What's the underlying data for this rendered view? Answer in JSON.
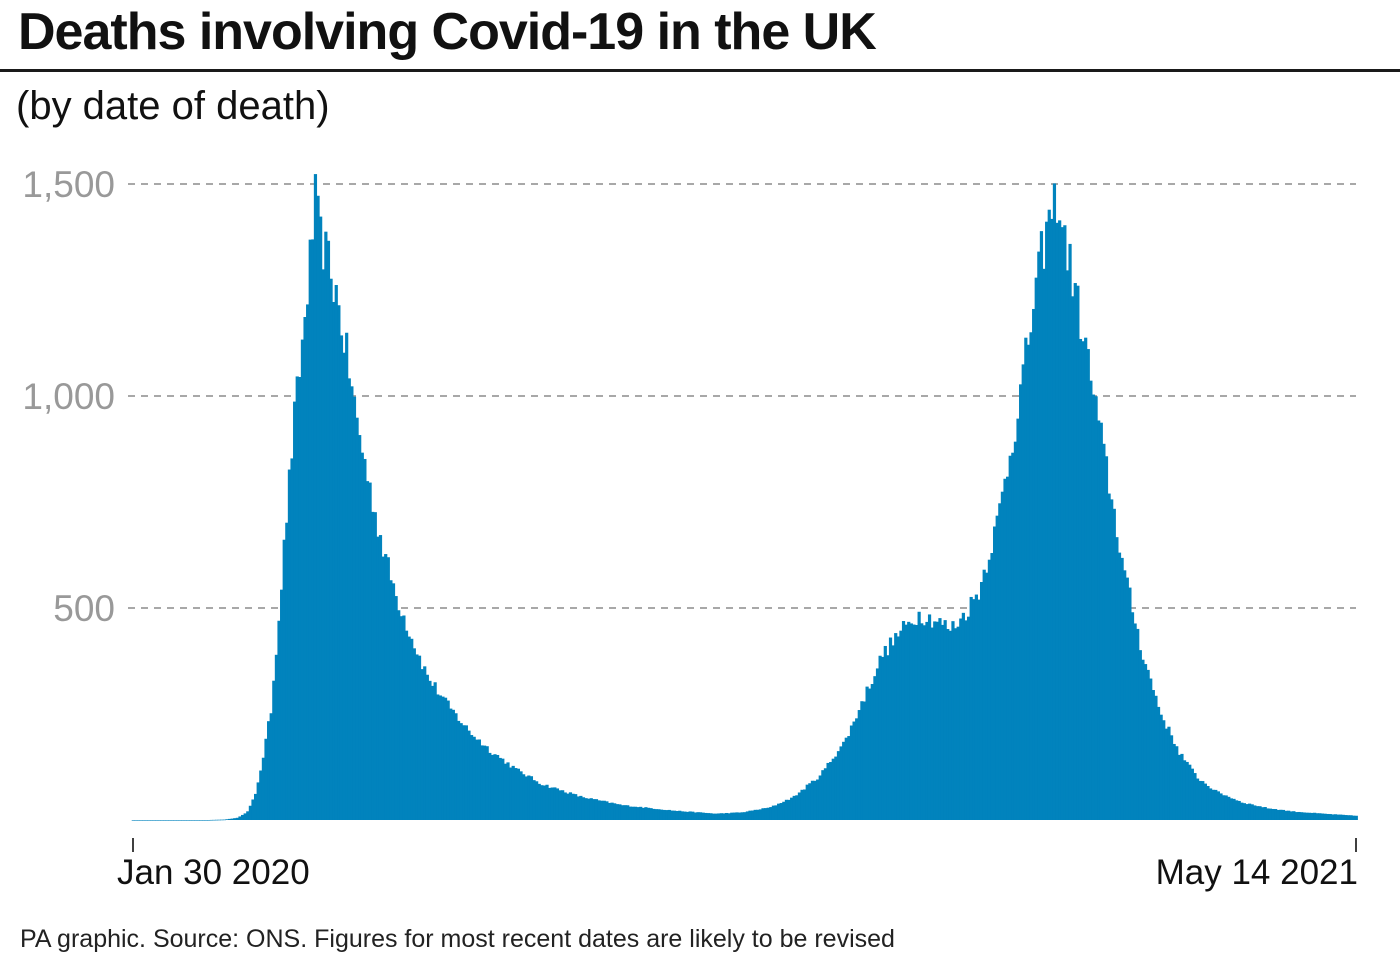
{
  "header": {
    "title": "Deaths involving Covid-19 in the UK",
    "subtitle": "(by date of death)"
  },
  "footer": {
    "source": "PA graphic. Source: ONS. Figures for most recent dates are likely to be revised"
  },
  "colors": {
    "bar": "#0183bd",
    "grid": "#8c8c8c",
    "ytick": "#999999"
  },
  "chart_data": {
    "type": "bar",
    "title": "Deaths involving Covid-19 in the UK",
    "subtitle": "(by date of death)",
    "xlabel": "",
    "ylabel": "",
    "x_start": "2020-01-30",
    "x_end": "2021-05-14",
    "ylim": [
      0,
      1500
    ],
    "yticks": [
      500,
      1000,
      1500
    ],
    "ytick_labels": [
      "500",
      "1,000",
      "1,500"
    ],
    "xtick_labels": [
      "Jan 30 2020",
      "May 14 2021"
    ],
    "grid": "horizontal dashed",
    "legend": "none",
    "anchors": [
      [
        "2020-01-30",
        0
      ],
      [
        "2020-02-28",
        0
      ],
      [
        "2020-03-05",
        1
      ],
      [
        "2020-03-10",
        5
      ],
      [
        "2020-03-14",
        20
      ],
      [
        "2020-03-17",
        60
      ],
      [
        "2020-03-20",
        150
      ],
      [
        "2020-03-23",
        260
      ],
      [
        "2020-03-26",
        480
      ],
      [
        "2020-03-29",
        720
      ],
      [
        "2020-04-01",
        950
      ],
      [
        "2020-04-04",
        1120
      ],
      [
        "2020-04-06",
        1250
      ],
      [
        "2020-04-08",
        1390
      ],
      [
        "2020-04-09",
        1460
      ],
      [
        "2020-04-11",
        1370
      ],
      [
        "2020-04-14",
        1320
      ],
      [
        "2020-04-17",
        1240
      ],
      [
        "2020-04-21",
        1100
      ],
      [
        "2020-04-25",
        940
      ],
      [
        "2020-04-30",
        780
      ],
      [
        "2020-05-05",
        640
      ],
      [
        "2020-05-10",
        530
      ],
      [
        "2020-05-16",
        430
      ],
      [
        "2020-05-22",
        340
      ],
      [
        "2020-05-30",
        270
      ],
      [
        "2020-06-07",
        210
      ],
      [
        "2020-06-15",
        165
      ],
      [
        "2020-06-25",
        120
      ],
      [
        "2020-07-05",
        85
      ],
      [
        "2020-07-20",
        55
      ],
      [
        "2020-08-05",
        35
      ],
      [
        "2020-08-25",
        22
      ],
      [
        "2020-09-10",
        15
      ],
      [
        "2020-09-20",
        18
      ],
      [
        "2020-10-01",
        30
      ],
      [
        "2020-10-10",
        55
      ],
      [
        "2020-10-20",
        105
      ],
      [
        "2020-10-30",
        190
      ],
      [
        "2020-11-06",
        290
      ],
      [
        "2020-11-13",
        390
      ],
      [
        "2020-11-20",
        445
      ],
      [
        "2020-11-27",
        485
      ],
      [
        "2020-12-04",
        470
      ],
      [
        "2020-12-09",
        450
      ],
      [
        "2020-12-14",
        480
      ],
      [
        "2020-12-20",
        540
      ],
      [
        "2020-12-27",
        700
      ],
      [
        "2021-01-03",
        930
      ],
      [
        "2021-01-09",
        1170
      ],
      [
        "2021-01-13",
        1330
      ],
      [
        "2021-01-16",
        1410
      ],
      [
        "2021-01-19",
        1470
      ],
      [
        "2021-01-21",
        1400
      ],
      [
        "2021-01-25",
        1280
      ],
      [
        "2021-01-31",
        1080
      ],
      [
        "2021-02-07",
        830
      ],
      [
        "2021-02-14",
        580
      ],
      [
        "2021-02-21",
        390
      ],
      [
        "2021-02-28",
        250
      ],
      [
        "2021-03-07",
        160
      ],
      [
        "2021-03-14",
        100
      ],
      [
        "2021-03-21",
        68
      ],
      [
        "2021-03-31",
        42
      ],
      [
        "2021-04-10",
        28
      ],
      [
        "2021-04-20",
        20
      ],
      [
        "2021-05-01",
        15
      ],
      [
        "2021-05-14",
        10
      ]
    ]
  }
}
